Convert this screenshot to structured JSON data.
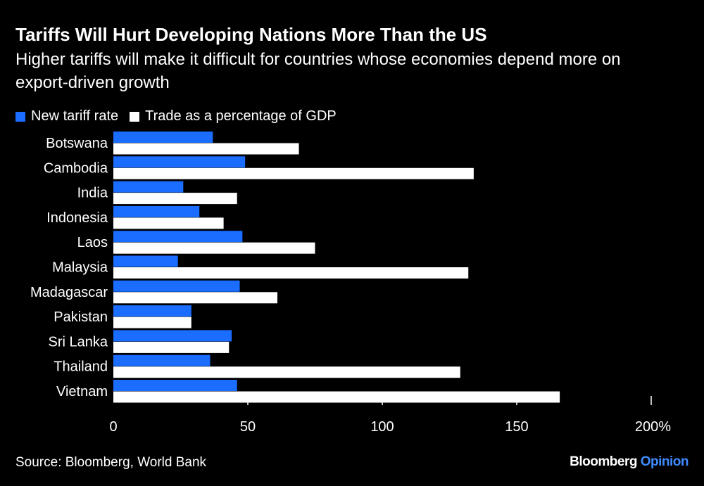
{
  "title": "Tariffs Will Hurt Developing Nations More Than the US",
  "subtitle": "Higher tariffs will make it difficult for countries whose economies depend more on export-driven growth",
  "source": "Source: Bloomberg, World Bank",
  "brand": {
    "name": "Bloomberg",
    "suffix": "Opinion"
  },
  "colors": {
    "tariff": "#1a6dff",
    "trade": "#ffffff",
    "brand_accent": "#3f8cff"
  },
  "chart_data": {
    "type": "bar",
    "orientation": "horizontal",
    "categories": [
      "Botswana",
      "Cambodia",
      "India",
      "Indonesia",
      "Laos",
      "Malaysia",
      "Madagascar",
      "Pakistan",
      "Sri Lanka",
      "Thailand",
      "Vietnam"
    ],
    "series": [
      {
        "name": "New tariff rate",
        "values": [
          37,
          49,
          26,
          32,
          48,
          24,
          47,
          29,
          44,
          36,
          46
        ]
      },
      {
        "name": "Trade as a percentage of GDP",
        "values": [
          69,
          134,
          46,
          41,
          75,
          132,
          61,
          29,
          43,
          129,
          166
        ]
      }
    ],
    "xlim": [
      0,
      200
    ],
    "xticks": [
      "0",
      "50",
      "100",
      "150",
      "200%"
    ],
    "xtick_values": [
      0,
      50,
      100,
      150,
      200
    ],
    "legend": "top-left",
    "grid": false
  }
}
